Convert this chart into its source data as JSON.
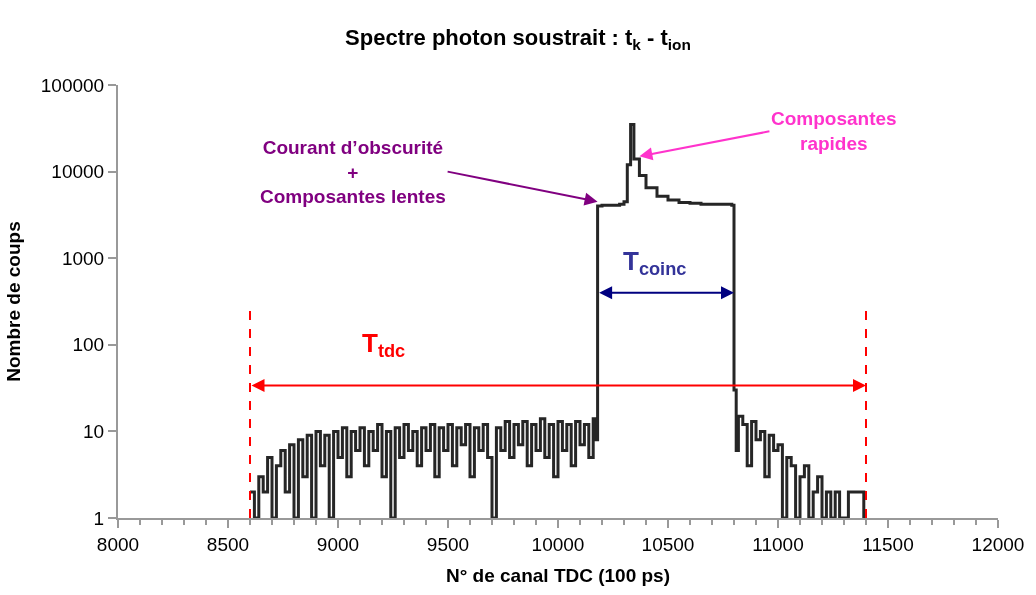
{
  "chart_data": {
    "type": "step",
    "title": "Spectre photon soustrait : t$_{k}$ - t$_{ion}$",
    "xlabel": "N° de canal TDC (100 ps)",
    "ylabel": "Nombre de coups",
    "x": [
      8600,
      8620,
      8640,
      8660,
      8680,
      8700,
      8720,
      8740,
      8760,
      8780,
      8800,
      8820,
      8840,
      8860,
      8880,
      8900,
      8920,
      8940,
      8960,
      8980,
      9000,
      9020,
      9040,
      9060,
      9080,
      9100,
      9120,
      9140,
      9160,
      9180,
      9200,
      9220,
      9240,
      9260,
      9280,
      9300,
      9320,
      9340,
      9360,
      9380,
      9400,
      9420,
      9440,
      9460,
      9480,
      9500,
      9520,
      9540,
      9560,
      9580,
      9600,
      9620,
      9640,
      9660,
      9680,
      9700,
      9720,
      9740,
      9760,
      9780,
      9800,
      9820,
      9840,
      9860,
      9880,
      9900,
      9920,
      9940,
      9960,
      9980,
      10000,
      10020,
      10040,
      10060,
      10080,
      10100,
      10120,
      10140,
      10160,
      10170,
      10180,
      10200,
      10240,
      10280,
      10300,
      10315,
      10330,
      10345,
      10370,
      10400,
      10450,
      10500,
      10550,
      10600,
      10650,
      10700,
      10790,
      10800,
      10810,
      10820,
      10840,
      10860,
      10880,
      10900,
      10920,
      10940,
      10960,
      10980,
      11000,
      11020,
      11040,
      11060,
      11080,
      11100,
      11120,
      11140,
      11160,
      11180,
      11200,
      11220,
      11240,
      11260,
      11280,
      11300,
      11320,
      11340,
      11360,
      11380,
      11390
    ],
    "series": [
      {
        "color": "#262626",
        "values": [
          2,
          1,
          3,
          2,
          5,
          1,
          4,
          6,
          2,
          7,
          1,
          8,
          3,
          9,
          1,
          10,
          4,
          9,
          1,
          10,
          5,
          11,
          3,
          10,
          6,
          11,
          4,
          10,
          6,
          12,
          3,
          10,
          1,
          11,
          5,
          12,
          6,
          10,
          4,
          11,
          6,
          12,
          3,
          11,
          6,
          12,
          4,
          11,
          7,
          12,
          3,
          11,
          6,
          12,
          5,
          1,
          11,
          6,
          13,
          5,
          12,
          7,
          13,
          4,
          12,
          6,
          14,
          5,
          12,
          3,
          13,
          6,
          12,
          4,
          13,
          7,
          12,
          5,
          14,
          8,
          4000,
          4100,
          4100,
          4200,
          4500,
          12000,
          35000,
          14000,
          9000,
          6500,
          5200,
          4700,
          4400,
          4300,
          4200,
          4200,
          4100,
          30,
          6,
          15,
          12,
          4,
          13,
          8,
          10,
          3,
          9,
          6,
          7,
          1,
          5,
          4,
          1,
          3,
          4,
          1,
          2,
          3,
          1,
          2,
          1,
          2,
          1,
          1,
          2,
          2,
          2,
          2,
          1
        ]
      }
    ],
    "log": "y",
    "xlim": [
      8000,
      12000
    ],
    "xticks": [
      8000,
      8500,
      9000,
      9500,
      10000,
      10500,
      11000,
      11500,
      12000
    ],
    "ylim": [
      1,
      100000
    ],
    "yticks": [
      1,
      10,
      100,
      1000,
      10000,
      100000
    ],
    "ref_lines": [
      {
        "axis": "x",
        "value": 8600,
        "color": "#ff0000",
        "line_style": "dashed"
      },
      {
        "axis": "x",
        "value": 11400,
        "color": "#ff0000",
        "line_style": "dashed"
      }
    ],
    "annotations": [
      {
        "text": "Courant d’obscurité\n+\nComposantes lentes",
        "x": 10180,
        "y": 4500
      },
      {
        "text": "Composantes\nrapides",
        "x": 10370,
        "y": 15000
      },
      "T$_{tdc}$",
      "T$_{coinc}$"
    ]
  }
}
